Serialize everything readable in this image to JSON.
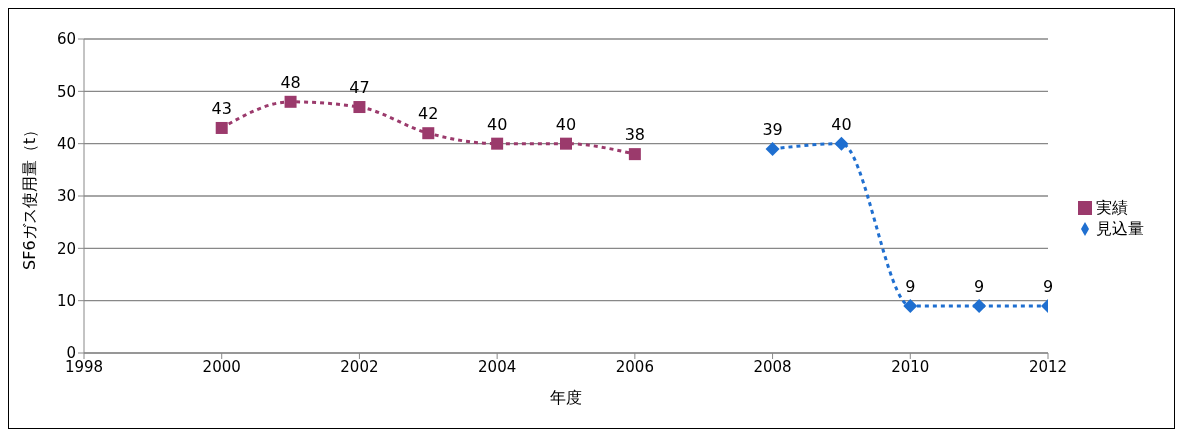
{
  "chart_data": {
    "type": "line",
    "xlabel": "年度",
    "ylabel": "SF6ガス使用量（t）",
    "xlim": [
      1998,
      2012
    ],
    "xticks": [
      1998,
      2000,
      2002,
      2004,
      2006,
      2008,
      2010,
      2012
    ],
    "ylim": [
      0,
      60
    ],
    "yticks": [
      0,
      10,
      20,
      30,
      40,
      50,
      60
    ],
    "grid": "y",
    "legend": "right",
    "line_style": "dashed",
    "data_labels": true,
    "series": [
      {
        "name": "見込量",
        "color": "#1f6fd0",
        "marker": "diamond",
        "x": [
          2008,
          2009,
          2010,
          2011,
          2012
        ],
        "values": [
          39,
          40,
          9,
          9,
          9
        ]
      },
      {
        "name": "実績",
        "color": "#9b3a6c",
        "marker": "square",
        "x": [
          2000,
          2001,
          2002,
          2003,
          2004,
          2005,
          2006
        ],
        "values": [
          43,
          48,
          47,
          42,
          40,
          40,
          38
        ]
      }
    ]
  }
}
